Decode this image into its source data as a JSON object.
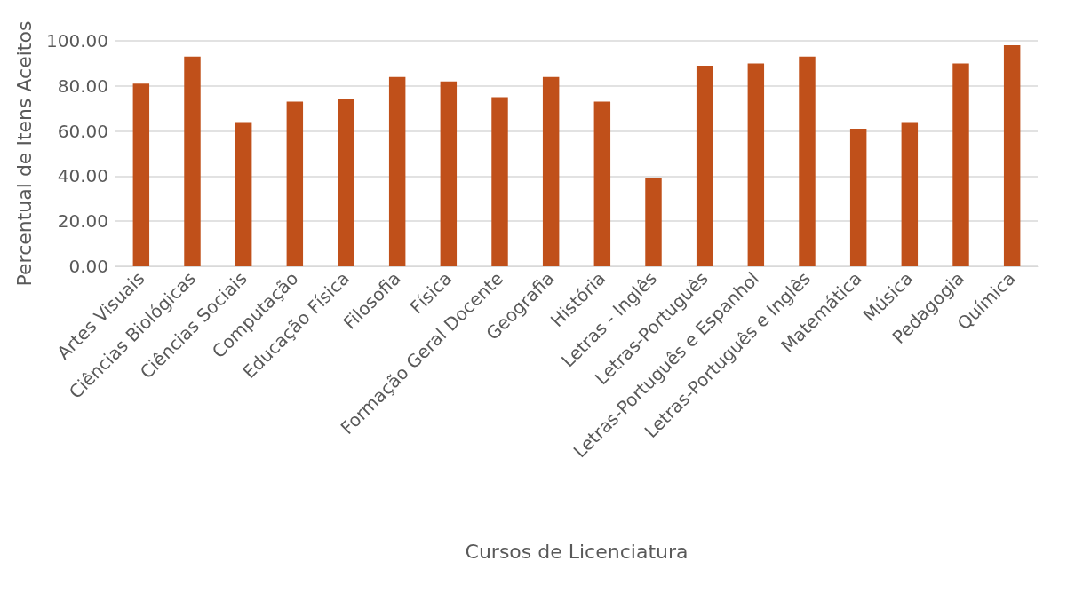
{
  "chart_data": {
    "type": "bar",
    "xlabel": "Cursos de Licenciatura",
    "ylabel": "Percentual de Itens Aceitos",
    "categories": [
      "Artes Visuais",
      "Ciências Biológicas",
      "Ciências Sociais",
      "Computação",
      "Educação Física",
      "Filosofia",
      "Física",
      "Formação Geral Docente",
      "Geografia",
      "História",
      "Letras - Inglês",
      "Letras-Português",
      "Letras-Português e Espanhol",
      "Letras-Português e Inglês",
      "Matemática",
      "Música",
      "Pedagogia",
      "Química"
    ],
    "values": [
      81,
      93,
      64,
      73,
      74,
      84,
      82,
      75,
      84,
      73,
      39,
      89,
      90,
      93,
      61,
      64,
      90,
      98
    ],
    "color": "#c0501a",
    "ylim": [
      0,
      100
    ],
    "yticks": [
      {
        "value": 0,
        "label": "0.00"
      },
      {
        "value": 20,
        "label": "20.00"
      },
      {
        "value": 40,
        "label": "40.00"
      },
      {
        "value": 60,
        "label": "60.00"
      },
      {
        "value": 80,
        "label": "80.00"
      },
      {
        "value": 100,
        "label": "100.00"
      }
    ],
    "grid": "y"
  }
}
